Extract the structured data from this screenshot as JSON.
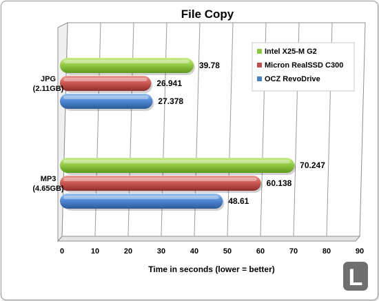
{
  "chart_data": {
    "type": "bar",
    "orientation": "horizontal",
    "title": "File Copy",
    "xlabel": "Time in seconds  (lower = better)",
    "ylabel": "",
    "xlim": [
      0,
      90
    ],
    "x_ticks": [
      "0",
      "10",
      "20",
      "30",
      "40",
      "50",
      "60",
      "70",
      "80",
      "90"
    ],
    "grid": true,
    "legend_position": "top-right",
    "categories": [
      {
        "line1": "JPG",
        "line2": "(2.11GB)"
      },
      {
        "line1": "MP3",
        "line2": "(4.65GB)"
      }
    ],
    "series": [
      {
        "name": "Intel X25-M G2",
        "color": "#8dc63f",
        "values": [
          39.78,
          70.247
        ],
        "labels": [
          "39.78",
          "70.247"
        ]
      },
      {
        "name": "Micron RealSSD  C300",
        "color": "#c0504d",
        "values": [
          26.941,
          60.138
        ],
        "labels": [
          "26.941",
          "60.138"
        ]
      },
      {
        "name": "OCZ RevoDrive",
        "color": "#4f81bd",
        "values": [
          27.378,
          48.61
        ],
        "labels": [
          "27.378",
          "48.61"
        ]
      }
    ]
  },
  "watermark": "L"
}
